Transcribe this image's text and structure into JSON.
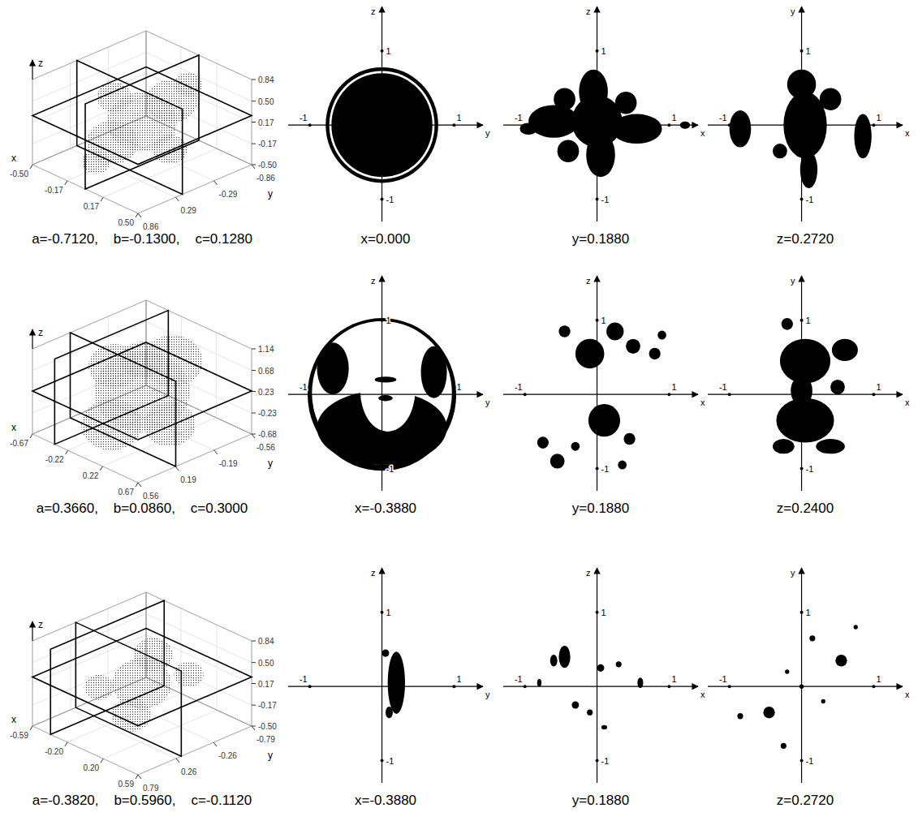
{
  "chart_data": [
    {
      "type": "panel_row",
      "title": "a=-0.7120,    b=-0.1300,    c=0.1280",
      "panels": [
        {
          "type": "scatter3d",
          "x_label": "x",
          "y_label": "y",
          "z_label": "z",
          "xlim": [
            -0.5,
            0.5
          ],
          "ylim": [
            -0.86,
            0.86
          ],
          "zlim": [
            -0.5,
            0.84
          ],
          "xticks": [
            {
              "value": -0.5,
              "label": "-0.50"
            },
            -0.17,
            0.17,
            {
              "value": 0.5,
              "label": "0.50"
            }
          ],
          "yticks": [
            -0.86,
            -0.29,
            0.29,
            0.86
          ],
          "zticks": [
            0.84,
            {
              "value": 0.5,
              "label": "0.50"
            },
            0.17,
            -0.17,
            {
              "value": -0.5,
              "label": "-0.50"
            }
          ],
          "clouds": [
            [
              0,
              0,
              0.17,
              0.3
            ],
            [
              0,
              -0.45,
              0.3,
              0.22
            ],
            [
              0,
              0.45,
              0.05,
              0.22
            ],
            [
              -0.2,
              0.1,
              0.45,
              0.15
            ],
            [
              0.2,
              -0.1,
              -0.15,
              0.15
            ],
            [
              0,
              -0.7,
              0.45,
              0.12
            ],
            [
              0,
              0.7,
              -0.15,
              0.12
            ]
          ]
        },
        {
          "type": "slice",
          "title": "x=0.000",
          "value": 0,
          "x_label": "y",
          "y_label": "z",
          "xlim": [
            -1.3,
            1.4
          ],
          "ylim": [
            -1.3,
            1.6
          ],
          "xticks": [
            -1,
            1
          ],
          "yticks": [
            -1,
            1
          ],
          "shapes": [
            [
              0,
              0,
              0.78,
              0.78
            ],
            [
              0,
              0,
              0.73,
              0.73
            ],
            [
              0,
              0,
              0.7,
              0.7
            ]
          ],
          "colors": [
            "#000000",
            "#ffffff",
            "#000000"
          ]
        },
        {
          "type": "slice",
          "title": "y=0.1880",
          "value": 0.188,
          "x_label": "x",
          "y_label": "z",
          "xlim": [
            -1.3,
            1.4
          ],
          "ylim": [
            -1.3,
            1.6
          ],
          "xticks": [
            -1,
            1
          ],
          "yticks": [
            -1,
            1
          ],
          "shapes": [
            [
              0,
              0.05,
              0.35,
              0.35
            ],
            [
              -0.05,
              0.45,
              0.2,
              0.3
            ],
            [
              -0.6,
              0.05,
              0.35,
              0.22
            ],
            [
              0.55,
              -0.05,
              0.35,
              0.2
            ],
            [
              0.05,
              -0.4,
              0.2,
              0.3
            ],
            [
              -0.45,
              0.35,
              0.15,
              0.15
            ],
            [
              1.22,
              0,
              0.07,
              0.05
            ],
            [
              -0.95,
              -0.05,
              0.12,
              0.08
            ],
            [
              -0.4,
              -0.35,
              0.15,
              0.15
            ],
            [
              0.4,
              0.3,
              0.15,
              0.15
            ]
          ],
          "color": "#000000"
        },
        {
          "type": "slice",
          "title": "z=0.2720",
          "value": 0.272,
          "x_label": "x",
          "y_label": "y",
          "xlim": [
            -1.3,
            1.4
          ],
          "ylim": [
            -1.3,
            1.6
          ],
          "xticks": [
            -1,
            1
          ],
          "yticks": [
            -1,
            1
          ],
          "shapes": [
            [
              0.05,
              0,
              0.3,
              0.45
            ],
            [
              0,
              0.55,
              0.2,
              0.2
            ],
            [
              0.1,
              -0.6,
              0.12,
              0.25
            ],
            [
              -0.85,
              -0.05,
              0.15,
              0.25
            ],
            [
              0.85,
              -0.15,
              0.12,
              0.3
            ],
            [
              -0.3,
              -0.35,
              0.1,
              0.1
            ],
            [
              0.4,
              0.35,
              0.15,
              0.15
            ]
          ],
          "color": "#000000"
        }
      ]
    },
    {
      "type": "panel_row",
      "title": "a=0.3660,    b=0.0860,    c=0.3000",
      "panels": [
        {
          "type": "scatter3d",
          "x_label": "x",
          "y_label": "y",
          "z_label": "z",
          "xlim": [
            -0.67,
            0.67
          ],
          "ylim": [
            -0.56,
            0.56
          ],
          "zlim": [
            -0.68,
            1.14
          ],
          "xticks": [
            -0.67,
            -0.22,
            0.22,
            0.67
          ],
          "yticks": [
            -0.56,
            -0.19,
            0.19,
            0.56
          ],
          "zticks": [
            1.14,
            0.68,
            0.23,
            -0.23,
            -0.68
          ],
          "clouds": [
            [
              0,
              0,
              0.23,
              0.55
            ],
            [
              0,
              -0.3,
              0.6,
              0.35
            ],
            [
              0,
              0.3,
              -0.2,
              0.35
            ],
            [
              -0.35,
              0,
              0.5,
              0.3
            ],
            [
              0.35,
              0,
              -0.2,
              0.3
            ],
            [
              0,
              0,
              0.9,
              0.25
            ]
          ]
        },
        {
          "type": "slice",
          "title": "x=-0.3880",
          "value": -0.388,
          "x_label": "y",
          "y_label": "z",
          "xlim": [
            -1.3,
            1.4
          ],
          "ylim": [
            -1.3,
            1.6
          ],
          "xticks": [
            -1,
            1
          ],
          "yticks": [
            -1,
            1
          ],
          "shapes": [
            [
              0,
              0,
              1.03,
              1.03
            ],
            [
              0,
              0.02,
              0.97,
              0.97
            ],
            [
              -0.68,
              0.35,
              0.22,
              0.35
            ],
            [
              0.72,
              0.3,
              0.18,
              0.35
            ],
            [
              0,
              -0.45,
              0.9,
              0.5
            ],
            [
              0.08,
              0.05,
              0.38,
              0.55
            ],
            [
              0.05,
              0.2,
              0.15,
              0.04
            ],
            [
              0.05,
              -0.05,
              0.1,
              0.04
            ]
          ],
          "colors": [
            "#000000",
            "#ffffff",
            "#000000",
            "#000000",
            "#000000",
            "#ffffff",
            "#000000",
            "#000000"
          ]
        },
        {
          "type": "slice",
          "title": "y=0.1880",
          "value": 0.188,
          "x_label": "x",
          "y_label": "z",
          "xlim": [
            -1.3,
            1.4
          ],
          "ylim": [
            -1.3,
            1.6
          ],
          "xticks": [
            -1,
            1
          ],
          "yticks": [
            -1,
            1
          ],
          "shapes": [
            [
              -0.1,
              0.55,
              0.2,
              0.2
            ],
            [
              0.1,
              -0.35,
              0.22,
              0.22
            ],
            [
              0.25,
              0.85,
              0.12,
              0.12
            ],
            [
              0.5,
              0.65,
              0.1,
              0.1
            ],
            [
              0.8,
              0.55,
              0.08,
              0.08
            ],
            [
              -0.55,
              -0.9,
              0.1,
              0.1
            ],
            [
              -0.75,
              -0.65,
              0.08,
              0.08
            ],
            [
              -0.45,
              0.85,
              0.08,
              0.08
            ],
            [
              0.45,
              -0.6,
              0.08,
              0.08
            ],
            [
              0.35,
              -0.95,
              0.06,
              0.06
            ],
            [
              0.9,
              0.8,
              0.06,
              0.06
            ],
            [
              -0.3,
              -0.7,
              0.06,
              0.06
            ]
          ],
          "color": "#000000"
        },
        {
          "type": "slice",
          "title": "z=0.2400",
          "value": 0.24,
          "x_label": "x",
          "y_label": "y",
          "xlim": [
            -1.3,
            1.4
          ],
          "ylim": [
            -1.3,
            1.6
          ],
          "xticks": [
            -1,
            1
          ],
          "yticks": [
            -1,
            1
          ],
          "shapes": [
            [
              0.05,
              0.45,
              0.35,
              0.3
            ],
            [
              0.05,
              -0.35,
              0.4,
              0.3
            ],
            [
              0,
              0.05,
              0.15,
              0.2
            ],
            [
              0.6,
              0.6,
              0.18,
              0.15
            ],
            [
              -0.25,
              -0.7,
              0.15,
              0.1
            ],
            [
              0.4,
              -0.7,
              0.2,
              0.1
            ],
            [
              -0.2,
              0.95,
              0.08,
              0.08
            ],
            [
              0.5,
              0.1,
              0.1,
              0.1
            ]
          ],
          "color": "#000000"
        }
      ]
    },
    {
      "type": "panel_row",
      "title": "a=-0.3820,    b=0.5960,    c=-0.1120",
      "panels": [
        {
          "type": "scatter3d",
          "x_label": "x",
          "y_label": "y",
          "z_label": "z",
          "xlim": [
            -0.59,
            0.59
          ],
          "ylim": [
            -0.79,
            0.79
          ],
          "zlim": [
            -0.5,
            0.84
          ],
          "xticks": [
            -0.59,
            {
              "value": -0.2,
              "label": "-0.20"
            },
            {
              "value": 0.2,
              "label": "0.20"
            },
            0.59
          ],
          "yticks": [
            -0.79,
            -0.26,
            0.26,
            0.79
          ],
          "zticks": [
            0.84,
            {
              "value": 0.5,
              "label": "0.50"
            },
            0.17,
            -0.17,
            {
              "value": -0.5,
              "label": "-0.50"
            }
          ],
          "clouds": [
            [
              0,
              0,
              0.17,
              0.3
            ],
            [
              -0.2,
              -0.4,
              0.3,
              0.2
            ],
            [
              0.2,
              0.4,
              0,
              0.2
            ],
            [
              0,
              0.6,
              0.4,
              0.15
            ],
            [
              0,
              -0.65,
              0,
              0.15
            ]
          ]
        },
        {
          "type": "slice",
          "title": "x=-0.3880",
          "value": -0.388,
          "x_label": "y",
          "y_label": "z",
          "xlim": [
            -1.3,
            1.4
          ],
          "ylim": [
            -1.3,
            1.6
          ],
          "xticks": [
            -1,
            1
          ],
          "yticks": [
            -1,
            1
          ],
          "shapes": [
            [
              0.2,
              0.05,
              0.12,
              0.42
            ],
            [
              0.05,
              0.45,
              0.05,
              0.05
            ],
            [
              0.1,
              -0.35,
              0.05,
              0.08
            ]
          ],
          "color": "#000000"
        },
        {
          "type": "slice",
          "title": "y=0.1880",
          "value": 0.188,
          "x_label": "x",
          "y_label": "z",
          "xlim": [
            -1.3,
            1.4
          ],
          "ylim": [
            -1.3,
            1.6
          ],
          "xticks": [
            -1,
            1
          ],
          "yticks": [
            -1,
            1
          ],
          "shapes": [
            [
              -0.45,
              0.4,
              0.08,
              0.15
            ],
            [
              -0.6,
              0.35,
              0.05,
              0.08
            ],
            [
              0.05,
              0.25,
              0.05,
              0.05
            ],
            [
              -0.3,
              -0.25,
              0.05,
              0.05
            ],
            [
              0.6,
              0.05,
              0.04,
              0.07
            ],
            [
              -0.1,
              -0.35,
              0.04,
              0.04
            ],
            [
              0.3,
              0.3,
              0.04,
              0.04
            ],
            [
              -0.8,
              0.05,
              0.03,
              0.05
            ],
            [
              0.1,
              -0.55,
              0.04,
              0.03
            ]
          ],
          "color": "#000000"
        },
        {
          "type": "slice",
          "title": "z=0.2720",
          "value": 0.272,
          "x_label": "x",
          "y_label": "y",
          "xlim": [
            -1.3,
            1.4
          ],
          "ylim": [
            -1.3,
            1.6
          ],
          "xticks": [
            -1,
            1
          ],
          "yticks": [
            -1,
            1
          ],
          "shapes": [
            [
              -0.45,
              -0.35,
              0.08,
              0.08
            ],
            [
              0.55,
              0.35,
              0.08,
              0.08
            ],
            [
              -0.85,
              -0.4,
              0.04,
              0.04
            ],
            [
              0.15,
              0.65,
              0.04,
              0.04
            ],
            [
              -0.25,
              -0.8,
              0.04,
              0.04
            ],
            [
              0.75,
              0.8,
              0.03,
              0.03
            ],
            [
              0,
              0,
              0.03,
              0.03
            ],
            [
              -0.2,
              0.2,
              0.03,
              0.03
            ],
            [
              0.3,
              -0.2,
              0.03,
              0.03
            ]
          ],
          "color": "#000000"
        }
      ]
    }
  ]
}
